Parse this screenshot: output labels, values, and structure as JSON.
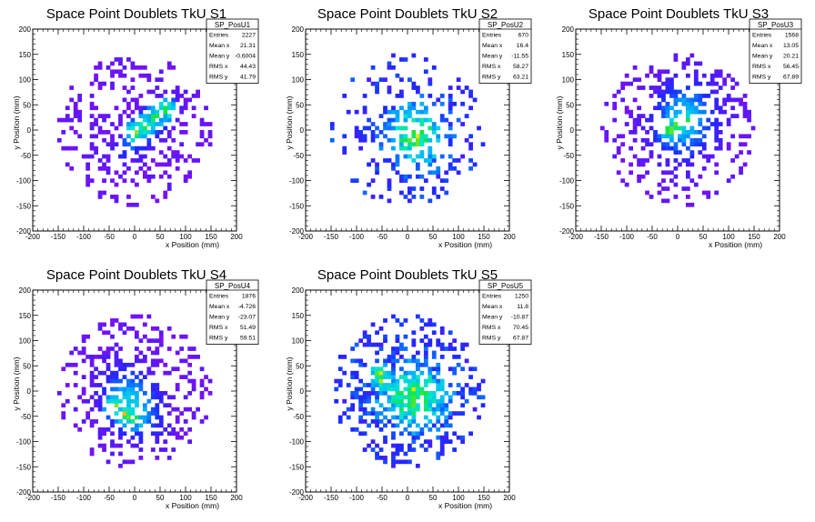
{
  "chart_data": [
    {
      "type": "heatmap",
      "title": "Space Point Doublets TkU S1",
      "xlabel": "x Position (mm)",
      "ylabel": "y Position (mm)",
      "xlim": [
        -200,
        200
      ],
      "ylim": [
        -200,
        200
      ],
      "ticks": [
        -200,
        -150,
        -100,
        -50,
        0,
        50,
        100,
        150,
        200
      ],
      "stats": {
        "name": "SP_PosU1",
        "rows": [
          [
            "Entries",
            "2227"
          ],
          [
            "Mean x",
            "21.31"
          ],
          [
            "Mean y",
            "-0.6004"
          ],
          [
            "RMS x",
            "44.43"
          ],
          [
            "RMS y",
            "41.79"
          ]
        ]
      },
      "distribution": {
        "cx": 21,
        "cy": -1,
        "sx": 44,
        "sy": 42,
        "rho": 0.72,
        "occupancy": 0.62,
        "palette": "purple",
        "hotspots": [
          [
            0,
            -5
          ],
          [
            20,
            10
          ],
          [
            40,
            25
          ],
          [
            60,
            40
          ]
        ]
      }
    },
    {
      "type": "heatmap",
      "title": "Space Point Doublets TkU S2",
      "xlabel": "x Position (mm)",
      "ylabel": "y Position (mm)",
      "xlim": [
        -200,
        200
      ],
      "ylim": [
        -200,
        200
      ],
      "ticks": [
        -200,
        -150,
        -100,
        -50,
        0,
        50,
        100,
        150,
        200
      ],
      "stats": {
        "name": "SP_PosU2",
        "rows": [
          [
            "Entries",
            "670"
          ],
          [
            "Mean x",
            "16.4"
          ],
          [
            "Mean y",
            "-11.55"
          ],
          [
            "RMS x",
            "58.27"
          ],
          [
            "RMS y",
            "63.21"
          ]
        ]
      },
      "distribution": {
        "cx": 16,
        "cy": -12,
        "sx": 58,
        "sy": 63,
        "rho": 0.0,
        "occupancy": 0.36,
        "palette": "blue",
        "hotspots": [
          [
            5,
            -15
          ],
          [
            20,
            -10
          ],
          [
            10,
            0
          ]
        ]
      }
    },
    {
      "type": "heatmap",
      "title": "Space Point Doublets TkU S3",
      "xlabel": "x Position (mm)",
      "ylabel": "y Position (mm)",
      "xlim": [
        -200,
        200
      ],
      "ylim": [
        -200,
        200
      ],
      "ticks": [
        -200,
        -150,
        -100,
        -50,
        0,
        50,
        100,
        150,
        200
      ],
      "stats": {
        "name": "SP_PosU3",
        "rows": [
          [
            "Entries",
            "1568"
          ],
          [
            "Mean x",
            "13.05"
          ],
          [
            "Mean y",
            "20.21"
          ],
          [
            "RMS x",
            "56.45"
          ],
          [
            "RMS y",
            "67.89"
          ]
        ]
      },
      "distribution": {
        "cx": 13,
        "cy": 20,
        "sx": 56,
        "sy": 68,
        "rho": 0.1,
        "occupancy": 0.5,
        "palette": "purple",
        "hotspots": [
          [
            -15,
            0
          ],
          [
            0,
            10
          ],
          [
            15,
            20
          ]
        ]
      }
    },
    {
      "type": "heatmap",
      "title": "Space Point Doublets TkU S4",
      "xlabel": "x Position (mm)",
      "ylabel": "y Position (mm)",
      "xlim": [
        -200,
        200
      ],
      "ylim": [
        -200,
        200
      ],
      "ticks": [
        -200,
        -150,
        -100,
        -50,
        0,
        50,
        100,
        150,
        200
      ],
      "stats": {
        "name": "SP_PosU4",
        "rows": [
          [
            "Entries",
            "1876"
          ],
          [
            "Mean x",
            "-4.726"
          ],
          [
            "Mean y",
            "-23.07"
          ],
          [
            "RMS x",
            "51.49"
          ],
          [
            "RMS y",
            "59.51"
          ]
        ]
      },
      "distribution": {
        "cx": -5,
        "cy": -23,
        "sx": 51,
        "sy": 60,
        "rho": -0.25,
        "occupancy": 0.62,
        "palette": "purple",
        "hotspots": [
          [
            -40,
            -30
          ],
          [
            -20,
            -45
          ],
          [
            0,
            -55
          ],
          [
            -10,
            -50
          ]
        ]
      }
    },
    {
      "type": "heatmap",
      "title": "Space Point Doublets TkU S5",
      "xlabel": "x Position (mm)",
      "ylabel": "y Position (mm)",
      "xlim": [
        -200,
        200
      ],
      "ylim": [
        -200,
        200
      ],
      "ticks": [
        -200,
        -150,
        -100,
        -50,
        0,
        50,
        100,
        150,
        200
      ],
      "stats": {
        "name": "SP_PosU5",
        "rows": [
          [
            "Entries",
            "1250"
          ],
          [
            "Mean x",
            "11.8"
          ],
          [
            "Mean y",
            "-10.87"
          ],
          [
            "RMS x",
            "70.45"
          ],
          [
            "RMS y",
            "67.87"
          ]
        ]
      },
      "distribution": {
        "cx": 12,
        "cy": -11,
        "sx": 70,
        "sy": 68,
        "rho": 0.0,
        "occupancy": 0.6,
        "palette": "blue",
        "hotspots": [
          [
            -55,
            35
          ],
          [
            10,
            5
          ],
          [
            -50,
            20
          ],
          [
            30,
            -10
          ]
        ]
      }
    }
  ],
  "colors": {
    "background": "#ffffff",
    "axis": "#000000",
    "palette_low": "#7b10f5",
    "palette_mid": "#00d8ff",
    "palette_high": "#ff0000"
  }
}
